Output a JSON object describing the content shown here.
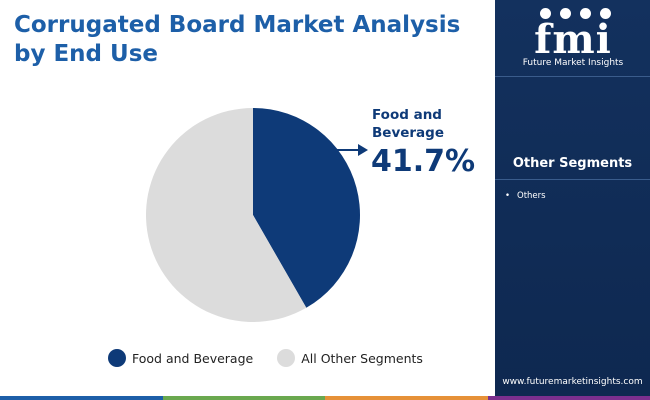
{
  "title": "Corrugated Board Market Analysis by End Use",
  "chart_data": {
    "type": "pie",
    "title": "Corrugated Board Market Analysis by End Use",
    "slices": [
      {
        "label": "Food and Beverage",
        "value": 41.7,
        "color": "#0e3a78"
      },
      {
        "label": "All Other Segments",
        "value": 58.3,
        "color": "#dcdcdc"
      }
    ],
    "start_angle_deg": 0,
    "direction": "clockwise",
    "legend_position": "bottom",
    "callout": {
      "label": "Food and Beverage",
      "value_text": "41.7%"
    }
  },
  "legend": {
    "items": [
      {
        "label": "Food and Beverage",
        "color": "#0e3a78"
      },
      {
        "label": "All Other Segments",
        "color": "#dcdcdc"
      }
    ]
  },
  "panel": {
    "logo_text": "fmi",
    "logo_subtitle": "Future Market Insights",
    "segments_heading": "Other Segments",
    "segments": [
      "Others"
    ],
    "website": "www.futuremarketinsights.com",
    "background": "#13315e"
  },
  "bottom_bar_colors": [
    "#1d5fa8",
    "#6aa84f",
    "#e69138",
    "#7b2f8e"
  ]
}
